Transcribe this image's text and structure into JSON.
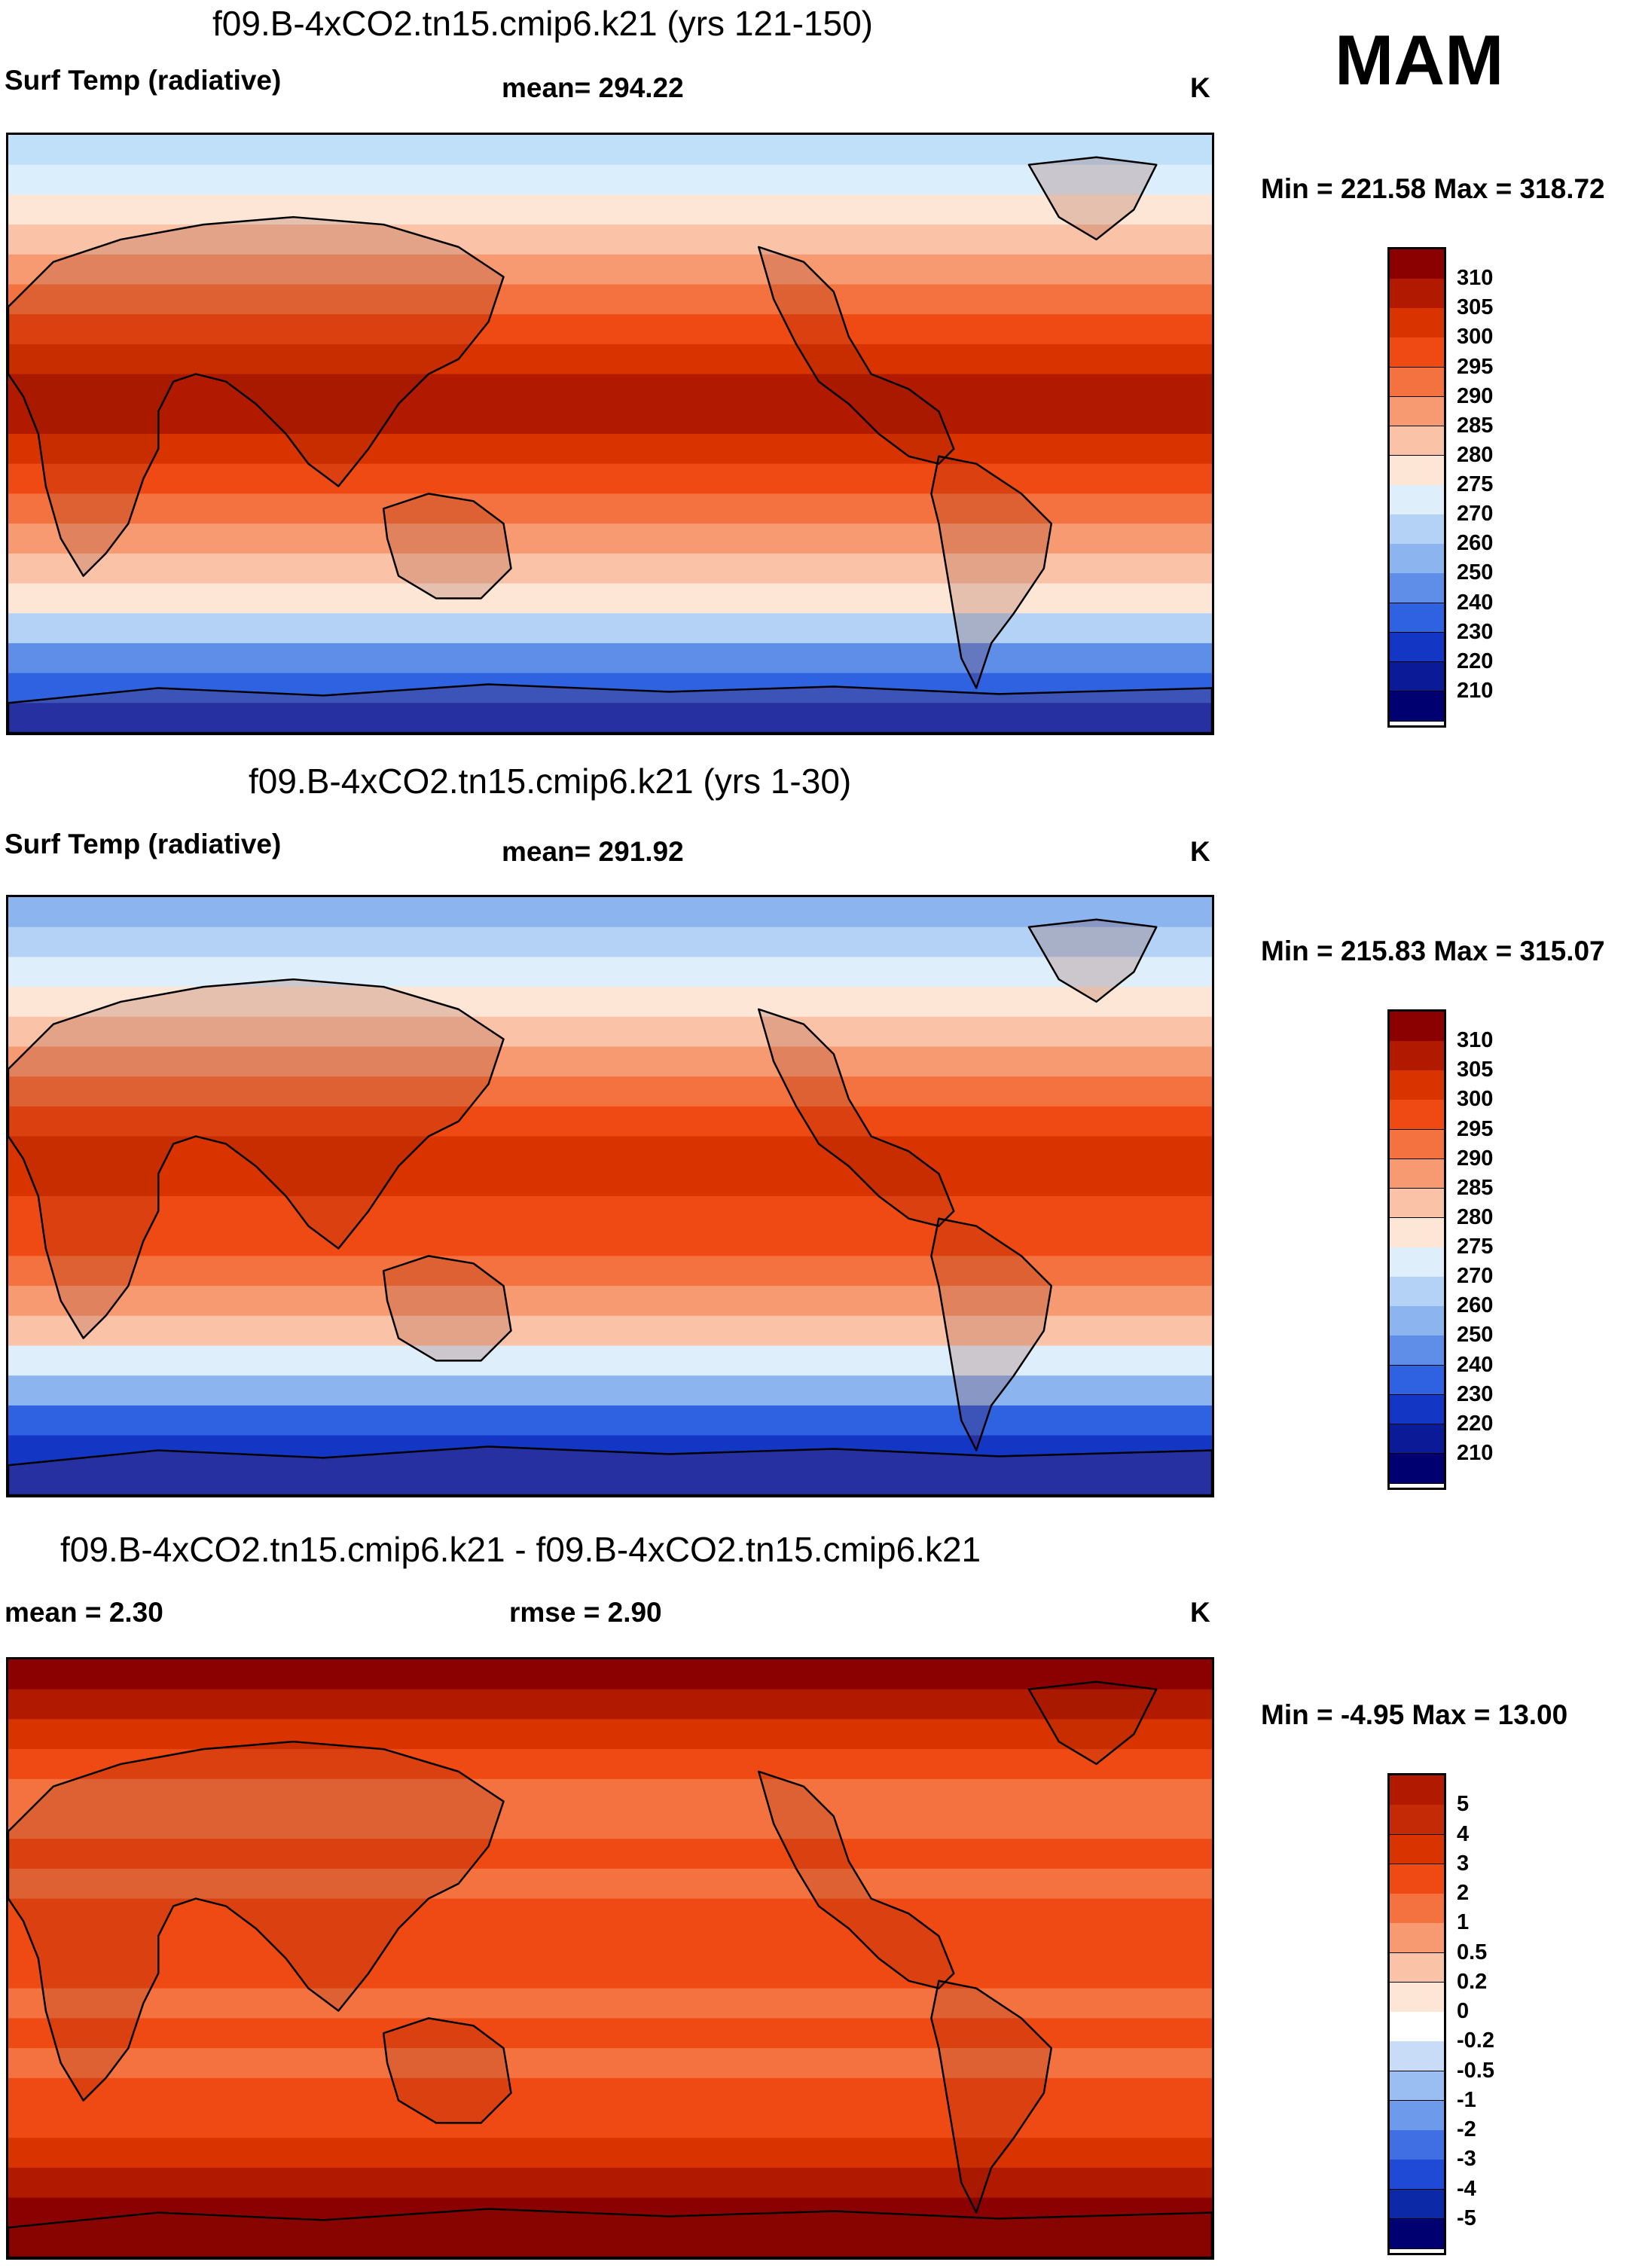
{
  "season": "MAM",
  "variable_units": "K",
  "panels": [
    {
      "title": "f09.B-4xCO2.tn15.cmip6.k21 (yrs 121-150)",
      "left_label": "Surf Temp (radiative)",
      "center_label": "mean= 294.22",
      "units": "K",
      "minmax": "Min = 221.58 Max = 318.72",
      "colorbar": {
        "levels": [
          "310",
          "305",
          "300",
          "295",
          "290",
          "285",
          "280",
          "275",
          "270",
          "260",
          "250",
          "240",
          "230",
          "220",
          "210"
        ],
        "colors": [
          "#8b0000",
          "#b21a00",
          "#d93300",
          "#f04a14",
          "#f4723f",
          "#f79a72",
          "#fac3a8",
          "#fde6d6",
          "#deeefb",
          "#b3d2f5",
          "#8cb4ef",
          "#5e8ee8",
          "#2f62e0",
          "#1436c4",
          "#0b1a96",
          "#000070"
        ]
      },
      "map_zones": [
        "#c0e0fa",
        "#dbeefb",
        "#fde6d6",
        "#fac3a8",
        "#f79a72",
        "#f4723f",
        "#f04a14",
        "#d93300",
        "#b21a00",
        "#b21a00",
        "#d93300",
        "#f04a14",
        "#f4723f",
        "#f79a72",
        "#fac3a8",
        "#fde6d6",
        "#b3d2f5",
        "#5e8ee8",
        "#2f62e0",
        "#1436c4"
      ]
    },
    {
      "title": "f09.B-4xCO2.tn15.cmip6.k21 (yrs 1-30)",
      "left_label": "Surf Temp (radiative)",
      "center_label": "mean= 291.92",
      "units": "K",
      "minmax": "Min = 215.83 Max = 315.07",
      "colorbar": {
        "levels": [
          "310",
          "305",
          "300",
          "295",
          "290",
          "285",
          "280",
          "275",
          "270",
          "260",
          "250",
          "240",
          "230",
          "220",
          "210"
        ],
        "colors": [
          "#8b0000",
          "#b21a00",
          "#d93300",
          "#f04a14",
          "#f4723f",
          "#f79a72",
          "#fac3a8",
          "#fde6d6",
          "#deeefb",
          "#b3d2f5",
          "#8cb4ef",
          "#5e8ee8",
          "#2f62e0",
          "#1436c4",
          "#0b1a96",
          "#000070"
        ]
      },
      "map_zones": [
        "#8cb4ef",
        "#b3d2f5",
        "#deeefb",
        "#fde6d6",
        "#fac3a8",
        "#f79a72",
        "#f4723f",
        "#f04a14",
        "#d93300",
        "#d93300",
        "#f04a14",
        "#f04a14",
        "#f4723f",
        "#f79a72",
        "#fac3a8",
        "#deeefb",
        "#8cb4ef",
        "#2f62e0",
        "#1436c4",
        "#1436c4"
      ]
    },
    {
      "title": "f09.B-4xCO2.tn15.cmip6.k21 - f09.B-4xCO2.tn15.cmip6.k21",
      "left_label": "mean =   2.30",
      "center_label": "rmse =   2.90",
      "units": "K",
      "minmax": "Min =  -4.95 Max =  13.00",
      "colorbar": {
        "levels": [
          "5",
          "4",
          "3",
          "2",
          "1",
          "0.5",
          "0.2",
          "0",
          "-0.2",
          "-0.5",
          "-1",
          "-2",
          "-3",
          "-4",
          "-5"
        ],
        "colors": [
          "#b21a00",
          "#c42a05",
          "#d93300",
          "#f04a14",
          "#f4723f",
          "#f79a72",
          "#fac3a8",
          "#fde6d6",
          "#ffffff",
          "#c8dcf8",
          "#9bbef2",
          "#6e9aeb",
          "#3f6fe3",
          "#1e4ad6",
          "#0c2aa8",
          "#000070"
        ]
      },
      "map_zones": [
        "#8b0000",
        "#b21a00",
        "#d93300",
        "#f04a14",
        "#f4723f",
        "#f4723f",
        "#f04a14",
        "#f4723f",
        "#f04a14",
        "#f04a14",
        "#f04a14",
        "#f4723f",
        "#f04a14",
        "#f4723f",
        "#f04a14",
        "#f04a14",
        "#d93300",
        "#b21a00",
        "#8b0000",
        "#8b0000"
      ]
    }
  ]
}
